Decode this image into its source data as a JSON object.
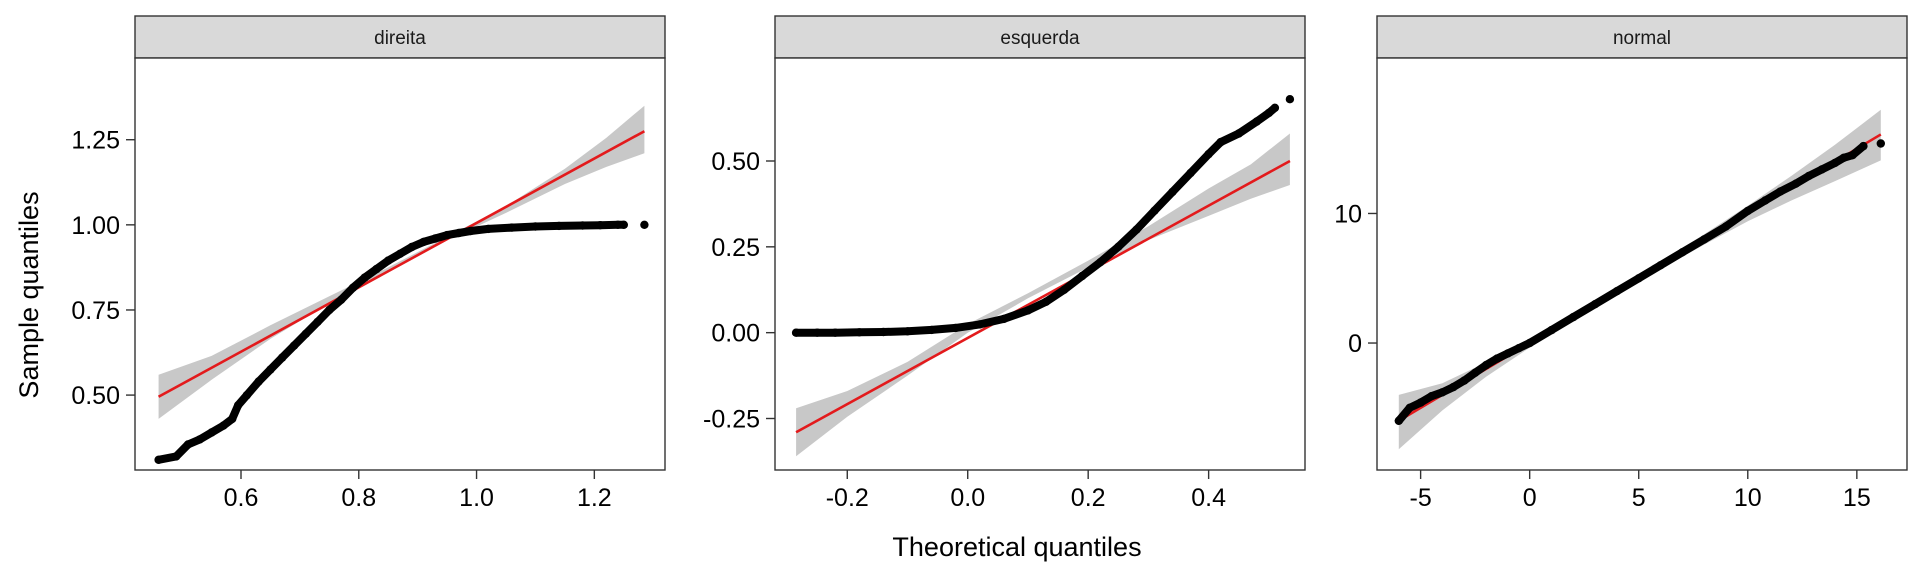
{
  "chart_data": {
    "type": "scatter",
    "kind": "qq-plot-facets",
    "xlabel": "Theoretical quantiles",
    "ylabel": "Sample quantiles",
    "grid": false,
    "colors": {
      "points": "#000000",
      "line": "#e31a1c",
      "band": "#c8c8c8",
      "strip": "#d9d9d9"
    },
    "panels": [
      {
        "strip": "direita",
        "xlim": [
          0.42,
          1.32
        ],
        "ylim": [
          0.28,
          1.49
        ],
        "xticks": [
          0.6,
          0.8,
          1.0,
          1.2
        ],
        "xtick_labels": [
          "0.6",
          "0.8",
          "1.0",
          "1.2"
        ],
        "yticks": [
          0.5,
          0.75,
          1.0,
          1.25
        ],
        "ytick_labels": [
          "0.50",
          "0.75",
          "1.00",
          "1.25"
        ],
        "line": {
          "x": [
            0.46,
            1.285
          ],
          "y": [
            0.495,
            1.275
          ]
        },
        "band": [
          {
            "x": 0.46,
            "lo": 0.43,
            "hi": 0.56
          },
          {
            "x": 0.55,
            "lo": 0.545,
            "hi": 0.615
          },
          {
            "x": 0.65,
            "lo": 0.665,
            "hi": 0.705
          },
          {
            "x": 0.75,
            "lo": 0.77,
            "hi": 0.79
          },
          {
            "x": 0.85,
            "lo": 0.865,
            "hi": 0.875
          },
          {
            "x": 0.95,
            "lo": 0.955,
            "hi": 0.965
          },
          {
            "x": 1.05,
            "lo": 1.035,
            "hi": 1.055
          },
          {
            "x": 1.15,
            "lo": 1.12,
            "hi": 1.165
          },
          {
            "x": 1.22,
            "lo": 1.17,
            "hi": 1.255
          },
          {
            "x": 1.285,
            "lo": 1.21,
            "hi": 1.35
          }
        ],
        "points": [
          [
            0.46,
            0.31
          ],
          [
            0.49,
            0.32
          ],
          [
            0.51,
            0.355
          ],
          [
            0.53,
            0.37
          ],
          [
            0.55,
            0.39
          ],
          [
            0.57,
            0.41
          ],
          [
            0.585,
            0.43
          ],
          [
            0.595,
            0.47
          ],
          [
            0.61,
            0.5
          ],
          [
            0.63,
            0.54
          ],
          [
            0.65,
            0.575
          ],
          [
            0.67,
            0.61
          ],
          [
            0.69,
            0.645
          ],
          [
            0.71,
            0.68
          ],
          [
            0.73,
            0.715
          ],
          [
            0.75,
            0.75
          ],
          [
            0.77,
            0.78
          ],
          [
            0.79,
            0.815
          ],
          [
            0.81,
            0.845
          ],
          [
            0.83,
            0.87
          ],
          [
            0.85,
            0.895
          ],
          [
            0.87,
            0.915
          ],
          [
            0.89,
            0.935
          ],
          [
            0.91,
            0.95
          ],
          [
            0.93,
            0.96
          ],
          [
            0.95,
            0.97
          ],
          [
            0.97,
            0.976
          ],
          [
            0.99,
            0.982
          ],
          [
            1.02,
            0.988
          ],
          [
            1.06,
            0.992
          ],
          [
            1.1,
            0.995
          ],
          [
            1.14,
            0.997
          ],
          [
            1.18,
            0.998
          ],
          [
            1.21,
            0.999
          ],
          [
            1.24,
            1.0
          ],
          [
            1.25,
            1.0
          ],
          [
            1.285,
            1.0
          ]
        ]
      },
      {
        "strip": "esquerda",
        "xlim": [
          -0.32,
          0.56
        ],
        "ylim": [
          -0.4,
          0.8
        ],
        "xticks": [
          -0.2,
          0.0,
          0.2,
          0.4
        ],
        "xtick_labels": [
          "-0.2",
          "0.0",
          "0.2",
          "0.4"
        ],
        "yticks": [
          -0.25,
          0.0,
          0.25,
          0.5
        ],
        "ytick_labels": [
          "-0.25",
          "0.00",
          "0.25",
          "0.50"
        ],
        "line": {
          "x": [
            -0.285,
            0.535
          ],
          "y": [
            -0.29,
            0.5
          ]
        },
        "band": [
          {
            "x": -0.285,
            "lo": -0.36,
            "hi": -0.22
          },
          {
            "x": -0.2,
            "lo": -0.245,
            "hi": -0.17
          },
          {
            "x": -0.1,
            "lo": -0.125,
            "hi": -0.085
          },
          {
            "x": 0.0,
            "lo": 0.0,
            "hi": 0.025
          },
          {
            "x": 0.1,
            "lo": 0.1,
            "hi": 0.115
          },
          {
            "x": 0.2,
            "lo": 0.19,
            "hi": 0.21
          },
          {
            "x": 0.3,
            "lo": 0.27,
            "hi": 0.31
          },
          {
            "x": 0.4,
            "lo": 0.34,
            "hi": 0.42
          },
          {
            "x": 0.47,
            "lo": 0.39,
            "hi": 0.49
          },
          {
            "x": 0.535,
            "lo": 0.43,
            "hi": 0.58
          }
        ],
        "points": [
          [
            -0.285,
            0.0
          ],
          [
            -0.25,
            0.0
          ],
          [
            -0.22,
            0.0
          ],
          [
            -0.18,
            0.001
          ],
          [
            -0.14,
            0.002
          ],
          [
            -0.1,
            0.004
          ],
          [
            -0.06,
            0.008
          ],
          [
            -0.02,
            0.014
          ],
          [
            0.02,
            0.024
          ],
          [
            0.06,
            0.04
          ],
          [
            0.1,
            0.065
          ],
          [
            0.13,
            0.09
          ],
          [
            0.16,
            0.125
          ],
          [
            0.19,
            0.165
          ],
          [
            0.22,
            0.205
          ],
          [
            0.25,
            0.25
          ],
          [
            0.28,
            0.3
          ],
          [
            0.31,
            0.355
          ],
          [
            0.34,
            0.41
          ],
          [
            0.37,
            0.465
          ],
          [
            0.4,
            0.52
          ],
          [
            0.42,
            0.555
          ],
          [
            0.45,
            0.58
          ],
          [
            0.48,
            0.615
          ],
          [
            0.5,
            0.64
          ],
          [
            0.51,
            0.655
          ],
          [
            0.535,
            0.68
          ]
        ]
      },
      {
        "strip": "normal",
        "xlim": [
          -7.0,
          17.3
        ],
        "ylim": [
          -9.8,
          22.0
        ],
        "xticks": [
          -5,
          0,
          5,
          10,
          15
        ],
        "xtick_labels": [
          "-5",
          "0",
          "5",
          "10",
          "15"
        ],
        "yticks": [
          0,
          10
        ],
        "ytick_labels": [
          "0",
          "10"
        ],
        "line": {
          "x": [
            -6.0,
            16.1
          ],
          "y": [
            -6.0,
            16.1
          ]
        },
        "band": [
          {
            "x": -6.0,
            "lo": -8.2,
            "hi": -4.0
          },
          {
            "x": -4.0,
            "lo": -5.2,
            "hi": -3.1
          },
          {
            "x": -2.0,
            "lo": -2.6,
            "hi": -1.5
          },
          {
            "x": 0.0,
            "lo": -0.35,
            "hi": 0.35
          },
          {
            "x": 2.0,
            "lo": 1.8,
            "hi": 2.2
          },
          {
            "x": 5.0,
            "lo": 4.75,
            "hi": 5.25
          },
          {
            "x": 8.0,
            "lo": 7.6,
            "hi": 8.4
          },
          {
            "x": 10.0,
            "lo": 9.4,
            "hi": 10.6
          },
          {
            "x": 12.0,
            "lo": 11.0,
            "hi": 12.9
          },
          {
            "x": 14.0,
            "lo": 12.5,
            "hi": 15.3
          },
          {
            "x": 16.1,
            "lo": 14.1,
            "hi": 18.0
          }
        ],
        "points": [
          [
            -6.0,
            -6.0
          ],
          [
            -5.5,
            -5.0
          ],
          [
            -5.0,
            -4.6
          ],
          [
            -4.5,
            -4.1
          ],
          [
            -4.0,
            -3.8
          ],
          [
            -3.5,
            -3.4
          ],
          [
            -3.0,
            -2.9
          ],
          [
            -2.5,
            -2.3
          ],
          [
            -2.0,
            -1.7
          ],
          [
            -1.5,
            -1.2
          ],
          [
            -1.0,
            -0.8
          ],
          [
            -0.5,
            -0.4
          ],
          [
            0.0,
            0.0
          ],
          [
            1.0,
            1.0
          ],
          [
            2.0,
            2.0
          ],
          [
            3.0,
            3.0
          ],
          [
            4.0,
            4.0
          ],
          [
            5.0,
            5.0
          ],
          [
            6.0,
            6.0
          ],
          [
            7.0,
            7.0
          ],
          [
            8.0,
            8.0
          ],
          [
            9.0,
            9.0
          ],
          [
            10.0,
            10.2
          ],
          [
            10.8,
            11.0
          ],
          [
            11.5,
            11.7
          ],
          [
            12.2,
            12.3
          ],
          [
            12.8,
            12.9
          ],
          [
            13.4,
            13.4
          ],
          [
            14.0,
            13.9
          ],
          [
            14.4,
            14.3
          ],
          [
            14.8,
            14.5
          ],
          [
            15.3,
            15.2
          ],
          [
            16.1,
            15.4
          ]
        ]
      }
    ]
  }
}
